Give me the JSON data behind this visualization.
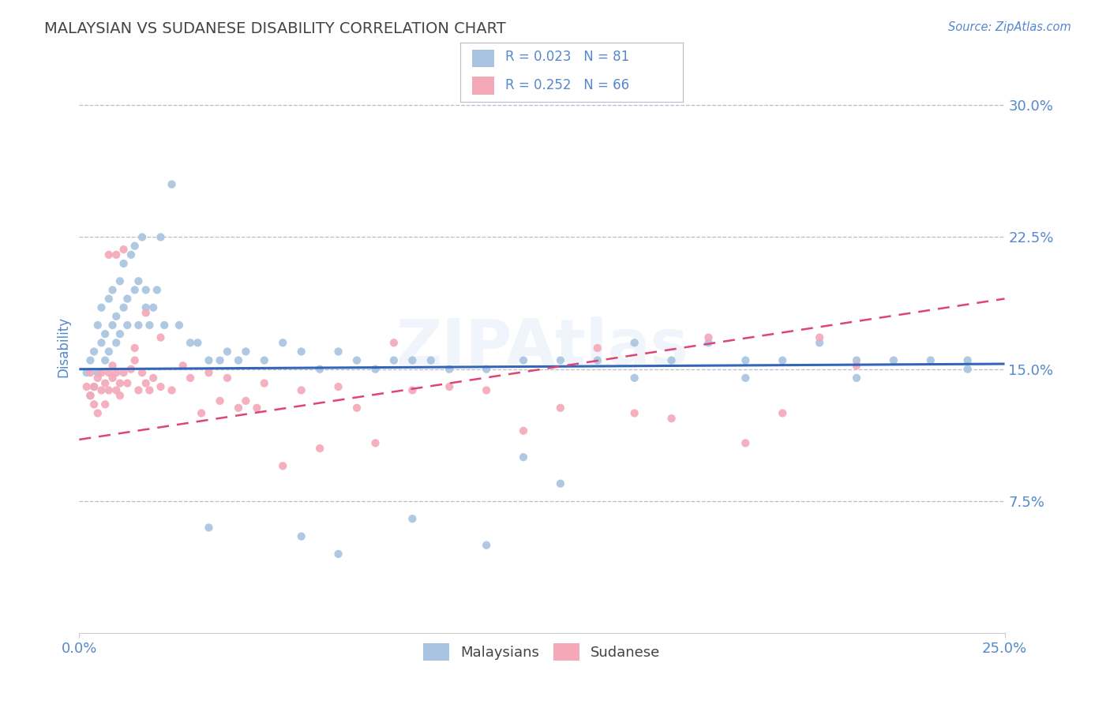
{
  "title": "MALAYSIAN VS SUDANESE DISABILITY CORRELATION CHART",
  "source": "Source: ZipAtlas.com",
  "ylabel": "Disability",
  "yticks": [
    0.075,
    0.15,
    0.225,
    0.3
  ],
  "ytick_labels": [
    "7.5%",
    "15.0%",
    "22.5%",
    "30.0%"
  ],
  "xtick_labels": [
    "0.0%",
    "25.0%"
  ],
  "xlim": [
    0.0,
    0.25
  ],
  "ylim": [
    0.0,
    0.325
  ],
  "watermark": "ZIPAtlas",
  "legend_r1": "R = 0.023",
  "legend_n1": "N = 81",
  "legend_r2": "R = 0.252",
  "legend_n2": "N = 66",
  "legend_label1": "Malaysians",
  "legend_label2": "Sudanese",
  "blue_color": "#a8c4e0",
  "pink_color": "#f4a8b8",
  "blue_line_color": "#3366bb",
  "pink_line_color": "#dd4477",
  "title_color": "#444444",
  "axis_label_color": "#5588cc",
  "tick_label_color": "#5588cc",
  "background_color": "#ffffff",
  "grid_color": "#bbbbcc",
  "malaysian_x": [
    0.002,
    0.003,
    0.003,
    0.004,
    0.004,
    0.005,
    0.005,
    0.006,
    0.006,
    0.007,
    0.007,
    0.008,
    0.008,
    0.009,
    0.009,
    0.01,
    0.01,
    0.011,
    0.011,
    0.012,
    0.012,
    0.013,
    0.013,
    0.014,
    0.015,
    0.015,
    0.016,
    0.016,
    0.017,
    0.018,
    0.018,
    0.019,
    0.02,
    0.021,
    0.022,
    0.023,
    0.025,
    0.027,
    0.03,
    0.032,
    0.035,
    0.038,
    0.04,
    0.043,
    0.045,
    0.05,
    0.055,
    0.06,
    0.065,
    0.07,
    0.075,
    0.08,
    0.085,
    0.09,
    0.095,
    0.1,
    0.11,
    0.12,
    0.13,
    0.14,
    0.15,
    0.16,
    0.17,
    0.18,
    0.19,
    0.2,
    0.21,
    0.22,
    0.23,
    0.24,
    0.035,
    0.06,
    0.09,
    0.12,
    0.15,
    0.18,
    0.21,
    0.24,
    0.13,
    0.11,
    0.07
  ],
  "malaysian_y": [
    0.148,
    0.155,
    0.135,
    0.16,
    0.14,
    0.175,
    0.148,
    0.165,
    0.185,
    0.155,
    0.17,
    0.16,
    0.19,
    0.175,
    0.195,
    0.165,
    0.18,
    0.2,
    0.17,
    0.185,
    0.21,
    0.175,
    0.19,
    0.215,
    0.195,
    0.22,
    0.175,
    0.2,
    0.225,
    0.185,
    0.195,
    0.175,
    0.185,
    0.195,
    0.225,
    0.175,
    0.255,
    0.175,
    0.165,
    0.165,
    0.155,
    0.155,
    0.16,
    0.155,
    0.16,
    0.155,
    0.165,
    0.16,
    0.15,
    0.16,
    0.155,
    0.15,
    0.155,
    0.155,
    0.155,
    0.15,
    0.15,
    0.155,
    0.155,
    0.155,
    0.165,
    0.155,
    0.165,
    0.155,
    0.155,
    0.165,
    0.155,
    0.155,
    0.155,
    0.155,
    0.06,
    0.055,
    0.065,
    0.1,
    0.145,
    0.145,
    0.145,
    0.15,
    0.085,
    0.05,
    0.045
  ],
  "sudanese_x": [
    0.002,
    0.003,
    0.003,
    0.004,
    0.004,
    0.005,
    0.005,
    0.006,
    0.006,
    0.007,
    0.007,
    0.008,
    0.008,
    0.009,
    0.009,
    0.01,
    0.01,
    0.011,
    0.011,
    0.012,
    0.013,
    0.014,
    0.015,
    0.016,
    0.017,
    0.018,
    0.019,
    0.02,
    0.022,
    0.025,
    0.028,
    0.03,
    0.033,
    0.035,
    0.038,
    0.04,
    0.043,
    0.045,
    0.048,
    0.05,
    0.055,
    0.06,
    0.065,
    0.07,
    0.075,
    0.08,
    0.085,
    0.09,
    0.1,
    0.11,
    0.12,
    0.13,
    0.14,
    0.15,
    0.16,
    0.17,
    0.18,
    0.19,
    0.2,
    0.21,
    0.008,
    0.01,
    0.012,
    0.015,
    0.018,
    0.022
  ],
  "sudanese_y": [
    0.14,
    0.135,
    0.148,
    0.14,
    0.13,
    0.145,
    0.125,
    0.138,
    0.148,
    0.142,
    0.13,
    0.148,
    0.138,
    0.145,
    0.152,
    0.138,
    0.148,
    0.142,
    0.135,
    0.148,
    0.142,
    0.15,
    0.155,
    0.138,
    0.148,
    0.142,
    0.138,
    0.145,
    0.14,
    0.138,
    0.152,
    0.145,
    0.125,
    0.148,
    0.132,
    0.145,
    0.128,
    0.132,
    0.128,
    0.142,
    0.095,
    0.138,
    0.105,
    0.14,
    0.128,
    0.108,
    0.165,
    0.138,
    0.14,
    0.138,
    0.115,
    0.128,
    0.162,
    0.125,
    0.122,
    0.168,
    0.108,
    0.125,
    0.168,
    0.152,
    0.215,
    0.215,
    0.218,
    0.162,
    0.182,
    0.168
  ]
}
